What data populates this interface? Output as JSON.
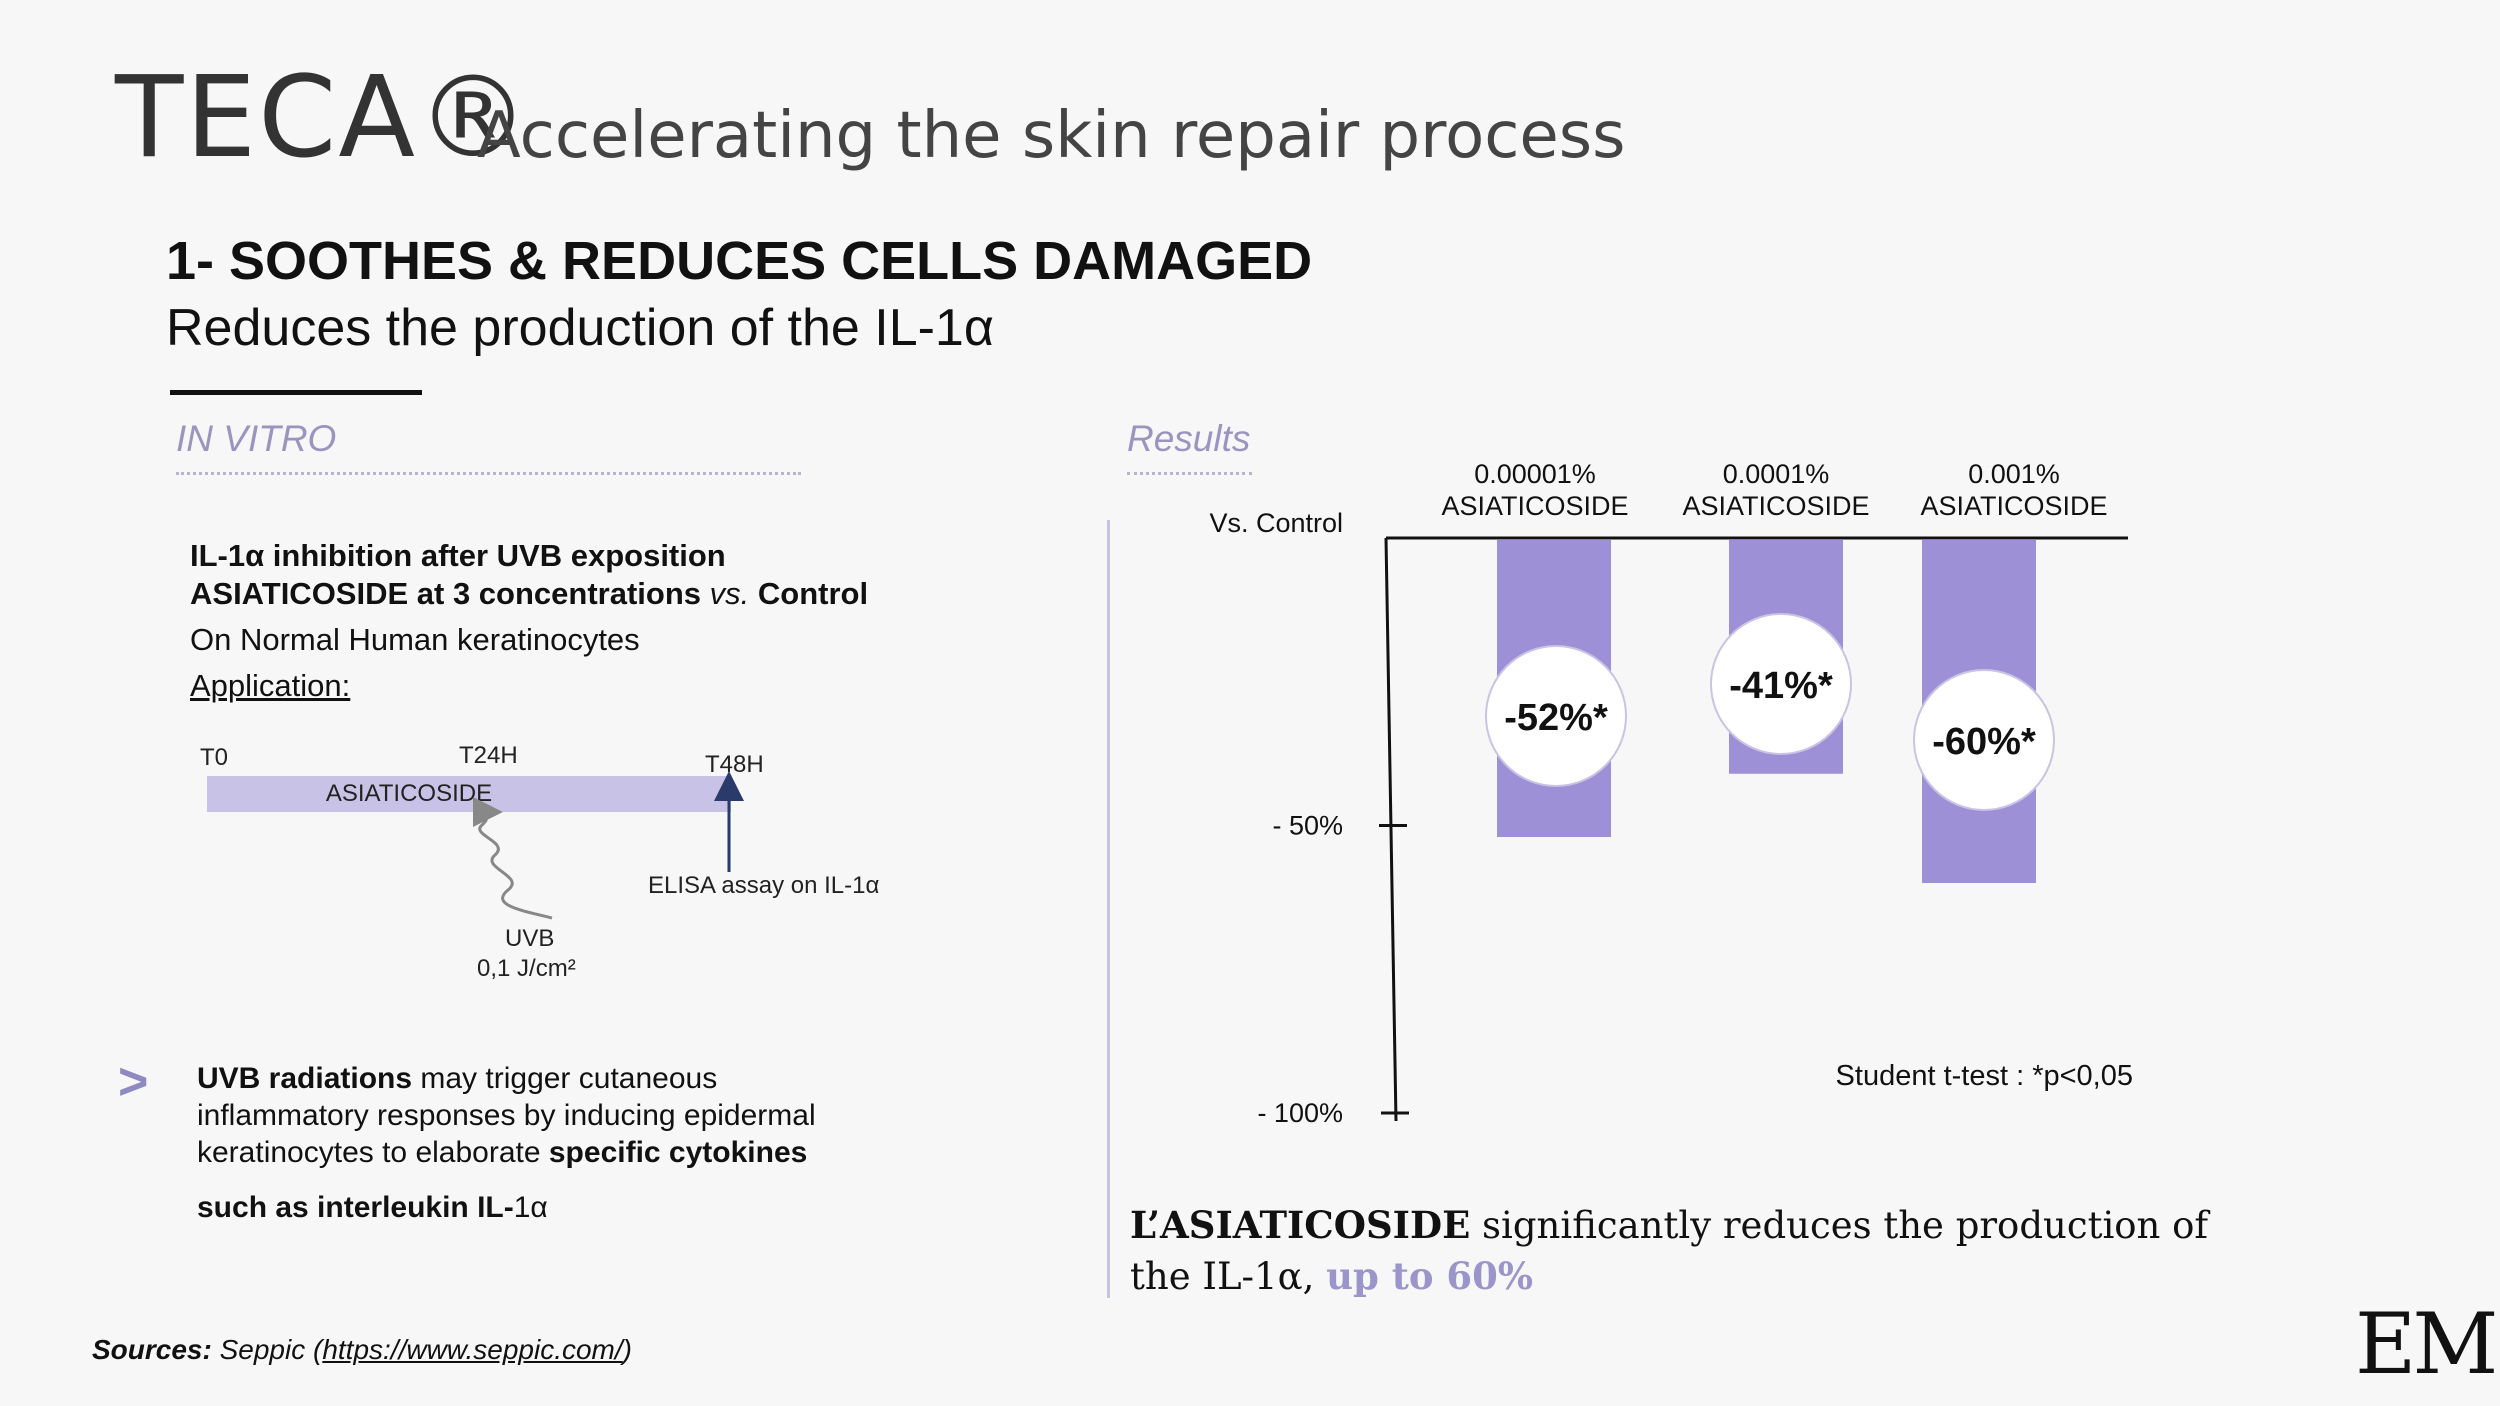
{
  "header": {
    "brand": "TECA®",
    "tagline": "Accelerating the skin repair process"
  },
  "section": {
    "heading": "1- SOOTHES & REDUCES CELLS DAMAGED",
    "subheading": "Reduces the production of the IL-1α"
  },
  "in_vitro": {
    "label": "IN VITRO",
    "line1": "IL-1α inhibition after UVB exposition",
    "line2_a": "ASIATICOSIDE at 3 concentrations ",
    "line2_vs": "vs.",
    "line2_b": " Control",
    "cells": "On Normal Human keratinocytes",
    "application_label": "Application:",
    "timeline": {
      "t0": "T0",
      "t24": "T24H",
      "t48": "T48H",
      "bar_label": "ASIATICOSIDE",
      "elisa": "ELISA assay on  IL-1α",
      "uvb": "UVB",
      "dose": "0,1 J/cm²"
    }
  },
  "bullet": {
    "icon": "chevron-right-icon",
    "glyph": ">",
    "l1_bold": "UVB radiations",
    "l1_rest": " may trigger cutaneous",
    "l2": "inflammatory responses by inducing epidermal",
    "l3_a": "keratinocytes to elaborate ",
    "l3_bold": "specific cytokines",
    "l4_bold": "such as interleukin IL-",
    "l4_rest": "1α"
  },
  "results": {
    "label": "Results",
    "stat_note": "Student t-test : *p<0,05"
  },
  "chart_data": {
    "type": "bar",
    "orientation": "downward",
    "baseline_label": "Vs. Control",
    "categories": [
      [
        "0.00001%",
        "ASIATICOSIDE"
      ],
      [
        "0.0001%",
        "ASIATICOSIDE"
      ],
      [
        "0.001%",
        "ASIATICOSIDE"
      ]
    ],
    "values": [
      -52,
      -41,
      -60
    ],
    "data_labels": [
      "-52%*",
      "-41%*",
      "-60%*"
    ],
    "y_ticks": [
      {
        "value": -50,
        "label": "- 50%"
      },
      {
        "value": -100,
        "label": "- 100%"
      }
    ],
    "ylim": [
      -100,
      0
    ],
    "bar_color": "#9e90d6"
  },
  "conclusion": {
    "bold": "L’ASIATICOSIDE",
    "line1_rest": " significantly reduces the production of",
    "line2": "the IL-1α, ",
    "accent": "up to 60%",
    "accent_color": "#9c95cb"
  },
  "footer": {
    "sources_label": "Sources:",
    "sources_text": " Seppic (",
    "sources_link": "https://www.seppic.com/",
    "sources_end": ")",
    "logo": "EM"
  }
}
